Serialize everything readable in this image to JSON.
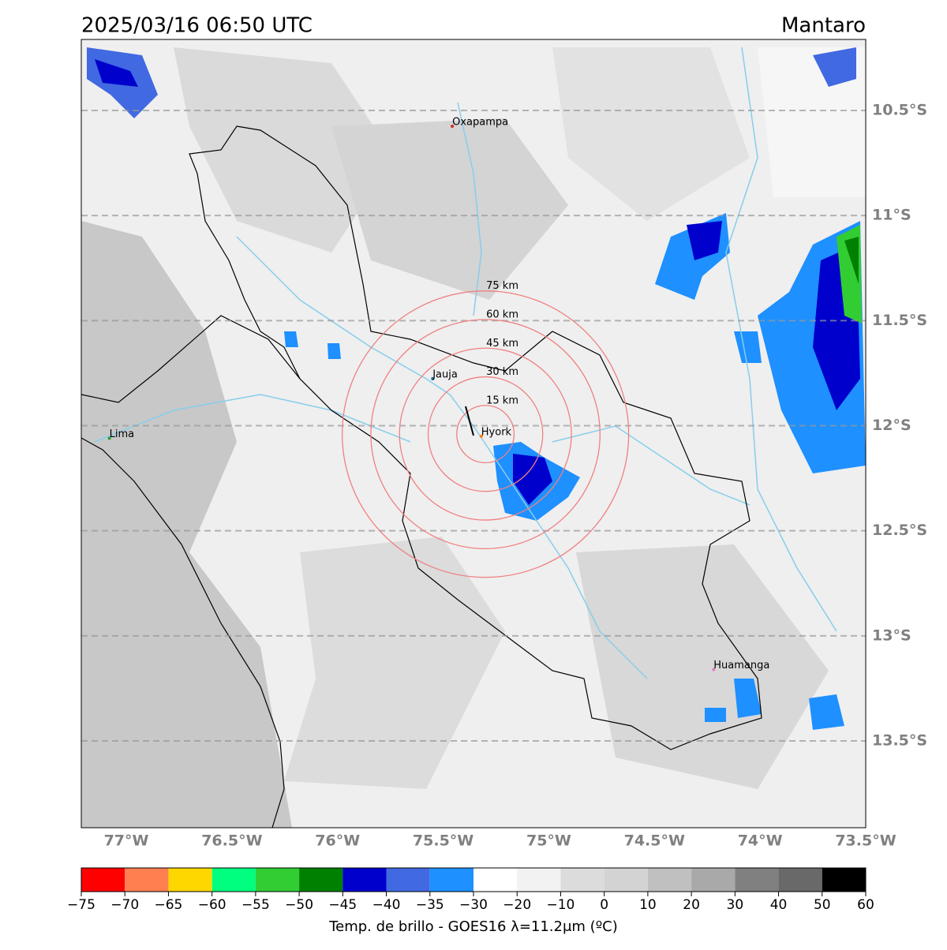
{
  "header": {
    "title": "2025/03/16 06:50 UTC",
    "region": "Mantaro"
  },
  "extent": {
    "lon": [
      -77.213,
      -73.5
    ],
    "lat": [
      -10.162,
      -13.913
    ]
  },
  "lat_lines": [
    {
      "value": -10.5,
      "label": "10.5°S"
    },
    {
      "value": -11,
      "label": "11°S"
    },
    {
      "value": -11.5,
      "label": "11.5°S"
    },
    {
      "value": -12,
      "label": "12°S"
    },
    {
      "value": -12.5,
      "label": "12.5°S"
    },
    {
      "value": -13,
      "label": "13°S"
    },
    {
      "value": -13.5,
      "label": "13.5°S"
    }
  ],
  "lon_labels": [
    {
      "value": -77,
      "label": "77°W"
    },
    {
      "value": -76.5,
      "label": "76.5°W"
    },
    {
      "value": -76,
      "label": "76°W"
    },
    {
      "value": -75.5,
      "label": "75.5°W"
    },
    {
      "value": -75,
      "label": "75°W"
    },
    {
      "value": -74.5,
      "label": "74.5°W"
    },
    {
      "value": -74,
      "label": "74°W"
    },
    {
      "value": -73.5,
      "label": "73.5°W"
    }
  ],
  "cities": [
    {
      "name": "Oxapampa",
      "lon": -75.457,
      "lat": -10.575,
      "color": "#d62728"
    },
    {
      "name": "Jauja",
      "lon": -75.55,
      "lat": -11.776,
      "color": "#1f77b4"
    },
    {
      "name": "Hyork",
      "lon": -75.32,
      "lat": -12.05,
      "color": "#ff7f0e"
    },
    {
      "name": "Lima",
      "lon": -77.08,
      "lat": -12.06,
      "color": "#2ca02c"
    },
    {
      "name": "Huamanga",
      "lon": -74.22,
      "lat": -13.16,
      "color": "#e377c2"
    }
  ],
  "rings": {
    "center": {
      "lon": -75.3,
      "lat": -12.04
    },
    "radii": [
      {
        "km": 15,
        "label": "15 km"
      },
      {
        "km": 30,
        "label": "30 km"
      },
      {
        "km": 45,
        "label": "45 km"
      },
      {
        "km": 60,
        "label": "60 km"
      },
      {
        "km": 75,
        "label": "75 km"
      }
    ]
  },
  "colorbar": {
    "ticks": [
      "−75",
      "−70",
      "−65",
      "−60",
      "−55",
      "−50",
      "−45",
      "−40",
      "−35",
      "−30",
      "−20",
      "−10",
      "0",
      "10",
      "20",
      "30",
      "40",
      "50",
      "60"
    ],
    "colors": [
      "#ff0000",
      "#ff7f50",
      "#ffd700",
      "#00ff7f",
      "#32cd32",
      "#008000",
      "#0000cd",
      "#4169e1",
      "#1e90ff",
      "#ffffff",
      "#f2f2f2",
      "#dcdcdc",
      "#d3d3d3",
      "#c0c0c0",
      "#a9a9a9",
      "#808080",
      "#696969",
      "#000000"
    ],
    "label": "Temp. de brillo - GOES16 λ=11.2μm (ºC)"
  }
}
